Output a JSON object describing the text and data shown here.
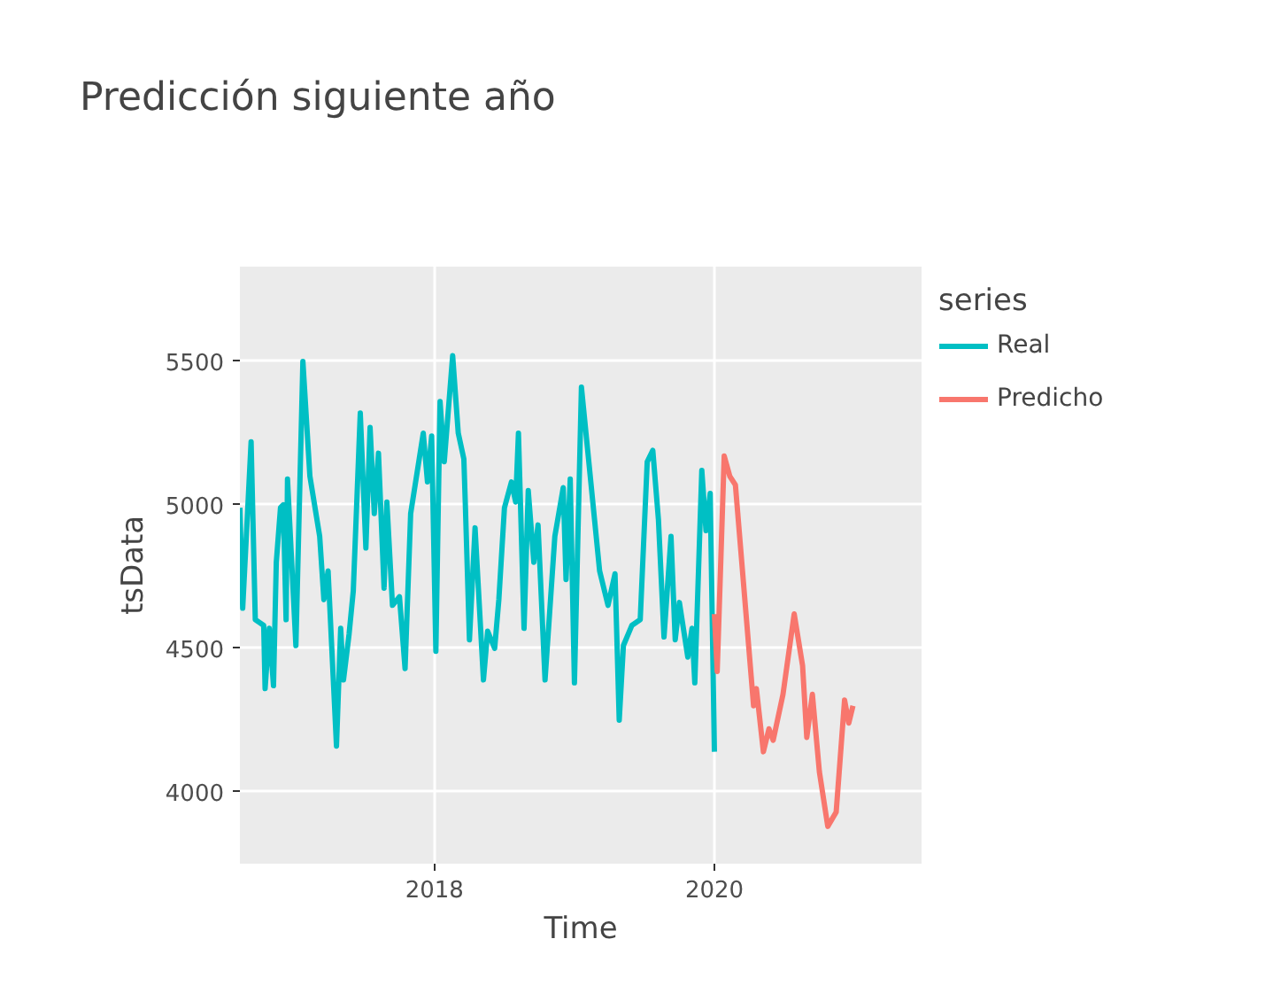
{
  "chart_data": {
    "type": "line",
    "title": "Predicción siguiente año",
    "xlabel": "Time",
    "ylabel": "tsData",
    "legend_title": "series",
    "legend": "right",
    "grid": true,
    "xlim": [
      2016.61,
      2021.48
    ],
    "ylim": [
      3750,
      5830
    ],
    "xticks": [
      2018,
      2020
    ],
    "yticks": [
      4000,
      4500,
      5000,
      5500
    ],
    "series": [
      {
        "name": "Real",
        "color": "#00bfc4",
        "x": [
          2016.61,
          2016.63,
          2016.69,
          2016.72,
          2016.78,
          2016.79,
          2016.82,
          2016.85,
          2016.87,
          2016.9,
          2016.92,
          2016.94,
          2016.95,
          2017.01,
          2017.06,
          2017.11,
          2017.18,
          2017.21,
          2017.24,
          2017.3,
          2017.33,
          2017.35,
          2017.39,
          2017.42,
          2017.47,
          2017.51,
          2017.54,
          2017.57,
          2017.6,
          2017.64,
          2017.66,
          2017.7,
          2017.75,
          2017.79,
          2017.83,
          2017.92,
          2017.95,
          2017.98,
          2018.01,
          2018.04,
          2018.07,
          2018.13,
          2018.17,
          2018.21,
          2018.22,
          2018.25,
          2018.29,
          2018.35,
          2018.38,
          2018.43,
          2018.46,
          2018.5,
          2018.55,
          2018.58,
          2018.6,
          2018.64,
          2018.67,
          2018.71,
          2018.74,
          2018.79,
          2018.86,
          2018.92,
          2018.94,
          2018.97,
          2019.0,
          2019.05,
          2019.18,
          2019.24,
          2019.29,
          2019.32,
          2019.35,
          2019.41,
          2019.47,
          2019.52,
          2019.56,
          2019.6,
          2019.64,
          2019.69,
          2019.72,
          2019.75,
          2019.81,
          2019.84,
          2019.86,
          2019.91,
          2019.94,
          2019.97,
          2020.0
        ],
        "values": [
          4990,
          4640,
          5220,
          4600,
          4580,
          4360,
          4570,
          4370,
          4800,
          4990,
          5000,
          4600,
          5090,
          4510,
          5500,
          5100,
          4890,
          4670,
          4770,
          4160,
          4570,
          4390,
          4550,
          4700,
          5320,
          4850,
          5270,
          4970,
          5180,
          4710,
          5010,
          4650,
          4680,
          4430,
          4970,
          5250,
          5080,
          5240,
          4490,
          5360,
          5150,
          5520,
          5250,
          5160,
          5010,
          4530,
          4920,
          4390,
          4560,
          4500,
          4670,
          4990,
          5080,
          5010,
          5250,
          4570,
          5050,
          4800,
          4930,
          4390,
          4890,
          5060,
          4740,
          5090,
          4380,
          5410,
          4770,
          4650,
          4760,
          4250,
          4510,
          4580,
          4600,
          5150,
          5190,
          4950,
          4540,
          4890,
          4530,
          4660,
          4470,
          4570,
          4380,
          5120,
          4910,
          5040,
          4140
        ]
      },
      {
        "name": "Predicho",
        "color": "#f8766d",
        "x": [
          2020.0,
          2020.02,
          2020.07,
          2020.11,
          2020.15,
          2020.28,
          2020.3,
          2020.35,
          2020.39,
          2020.42,
          2020.49,
          2020.57,
          2020.63,
          2020.66,
          2020.7,
          2020.75,
          2020.81,
          2020.87,
          2020.93,
          2020.96,
          2020.99
        ],
        "values": [
          4620,
          4420,
          5170,
          5100,
          5070,
          4300,
          4360,
          4140,
          4220,
          4180,
          4340,
          4620,
          4440,
          4190,
          4340,
          4070,
          3880,
          3930,
          4320,
          4240,
          4300
        ]
      }
    ]
  }
}
